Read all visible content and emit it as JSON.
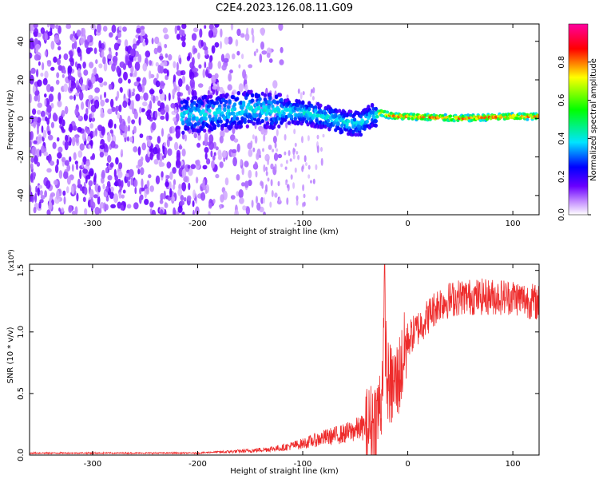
{
  "figure": {
    "title": "C2E4.2023.126.08.11.G09"
  },
  "chart_data": [
    {
      "type": "heatmap",
      "title": "C2E4.2023.126.08.11.G09",
      "xlabel": "Height of straight line (km)",
      "ylabel": "Frequency (Hz)",
      "xlim": [
        -360,
        125
      ],
      "ylim": [
        -50,
        49
      ],
      "x_ticks": [
        -300,
        -200,
        -100,
        0,
        100
      ],
      "x_tick_labels": [
        "-300",
        "-200",
        "-100",
        "0",
        "100"
      ],
      "y_ticks": [
        -40,
        -20,
        0,
        20,
        40
      ],
      "y_tick_labels": [
        "-40",
        "-20",
        "0",
        "20",
        "40"
      ],
      "ridge": {
        "x": [
          -360,
          -300,
          -250,
          -210,
          -180,
          -150,
          -130,
          -100,
          -80,
          -60,
          -45,
          -35,
          -25,
          -20,
          -10,
          0,
          50,
          100,
          125
        ],
        "y": [
          3,
          2.5,
          2,
          1.5,
          3,
          5,
          4,
          3,
          1,
          -2,
          -3,
          1,
          3,
          2,
          1,
          1,
          0,
          1,
          1
        ]
      },
      "colorbar": {
        "label": "Normalized spectral amplitude",
        "range": [
          0,
          1
        ],
        "ticks": [
          0.0,
          0.2,
          0.4,
          0.6,
          0.8
        ],
        "tick_labels": [
          "0.0",
          "0.2",
          "0.4",
          "0.6",
          "0.8"
        ]
      },
      "grid": false
    },
    {
      "type": "line",
      "xlabel": "Height of straight line (km)",
      "ylabel": "SNR (10 * v/v)",
      "y_scale_note": "(x10⁴)",
      "xlim": [
        -360,
        125
      ],
      "ylim": [
        0,
        1.55
      ],
      "x_ticks": [
        -300,
        -200,
        -100,
        0,
        100
      ],
      "x_tick_labels": [
        "-300",
        "-200",
        "-100",
        "0",
        "100"
      ],
      "y_ticks": [
        0,
        0.5,
        1.0,
        1.5
      ],
      "y_tick_labels": [
        "0.0",
        "0.5",
        "1.0",
        "1.5"
      ],
      "color": "#ee2b2b",
      "series": [
        {
          "x": [
            -360,
            -300,
            -250,
            -200,
            -180,
            -150,
            -120,
            -100,
            -80,
            -60,
            -40,
            -30,
            -25,
            -22,
            -20,
            -15,
            -10,
            -5,
            0,
            10,
            20,
            30,
            50,
            75,
            100,
            125
          ],
          "y": [
            0.01,
            0.01,
            0.01,
            0.01,
            0.02,
            0.03,
            0.05,
            0.08,
            0.12,
            0.15,
            0.2,
            0.3,
            0.45,
            1.2,
            0.6,
            0.55,
            0.6,
            0.75,
            0.95,
            1.05,
            1.15,
            1.25,
            1.3,
            1.3,
            1.3,
            1.25
          ]
        }
      ],
      "grid": false
    }
  ]
}
